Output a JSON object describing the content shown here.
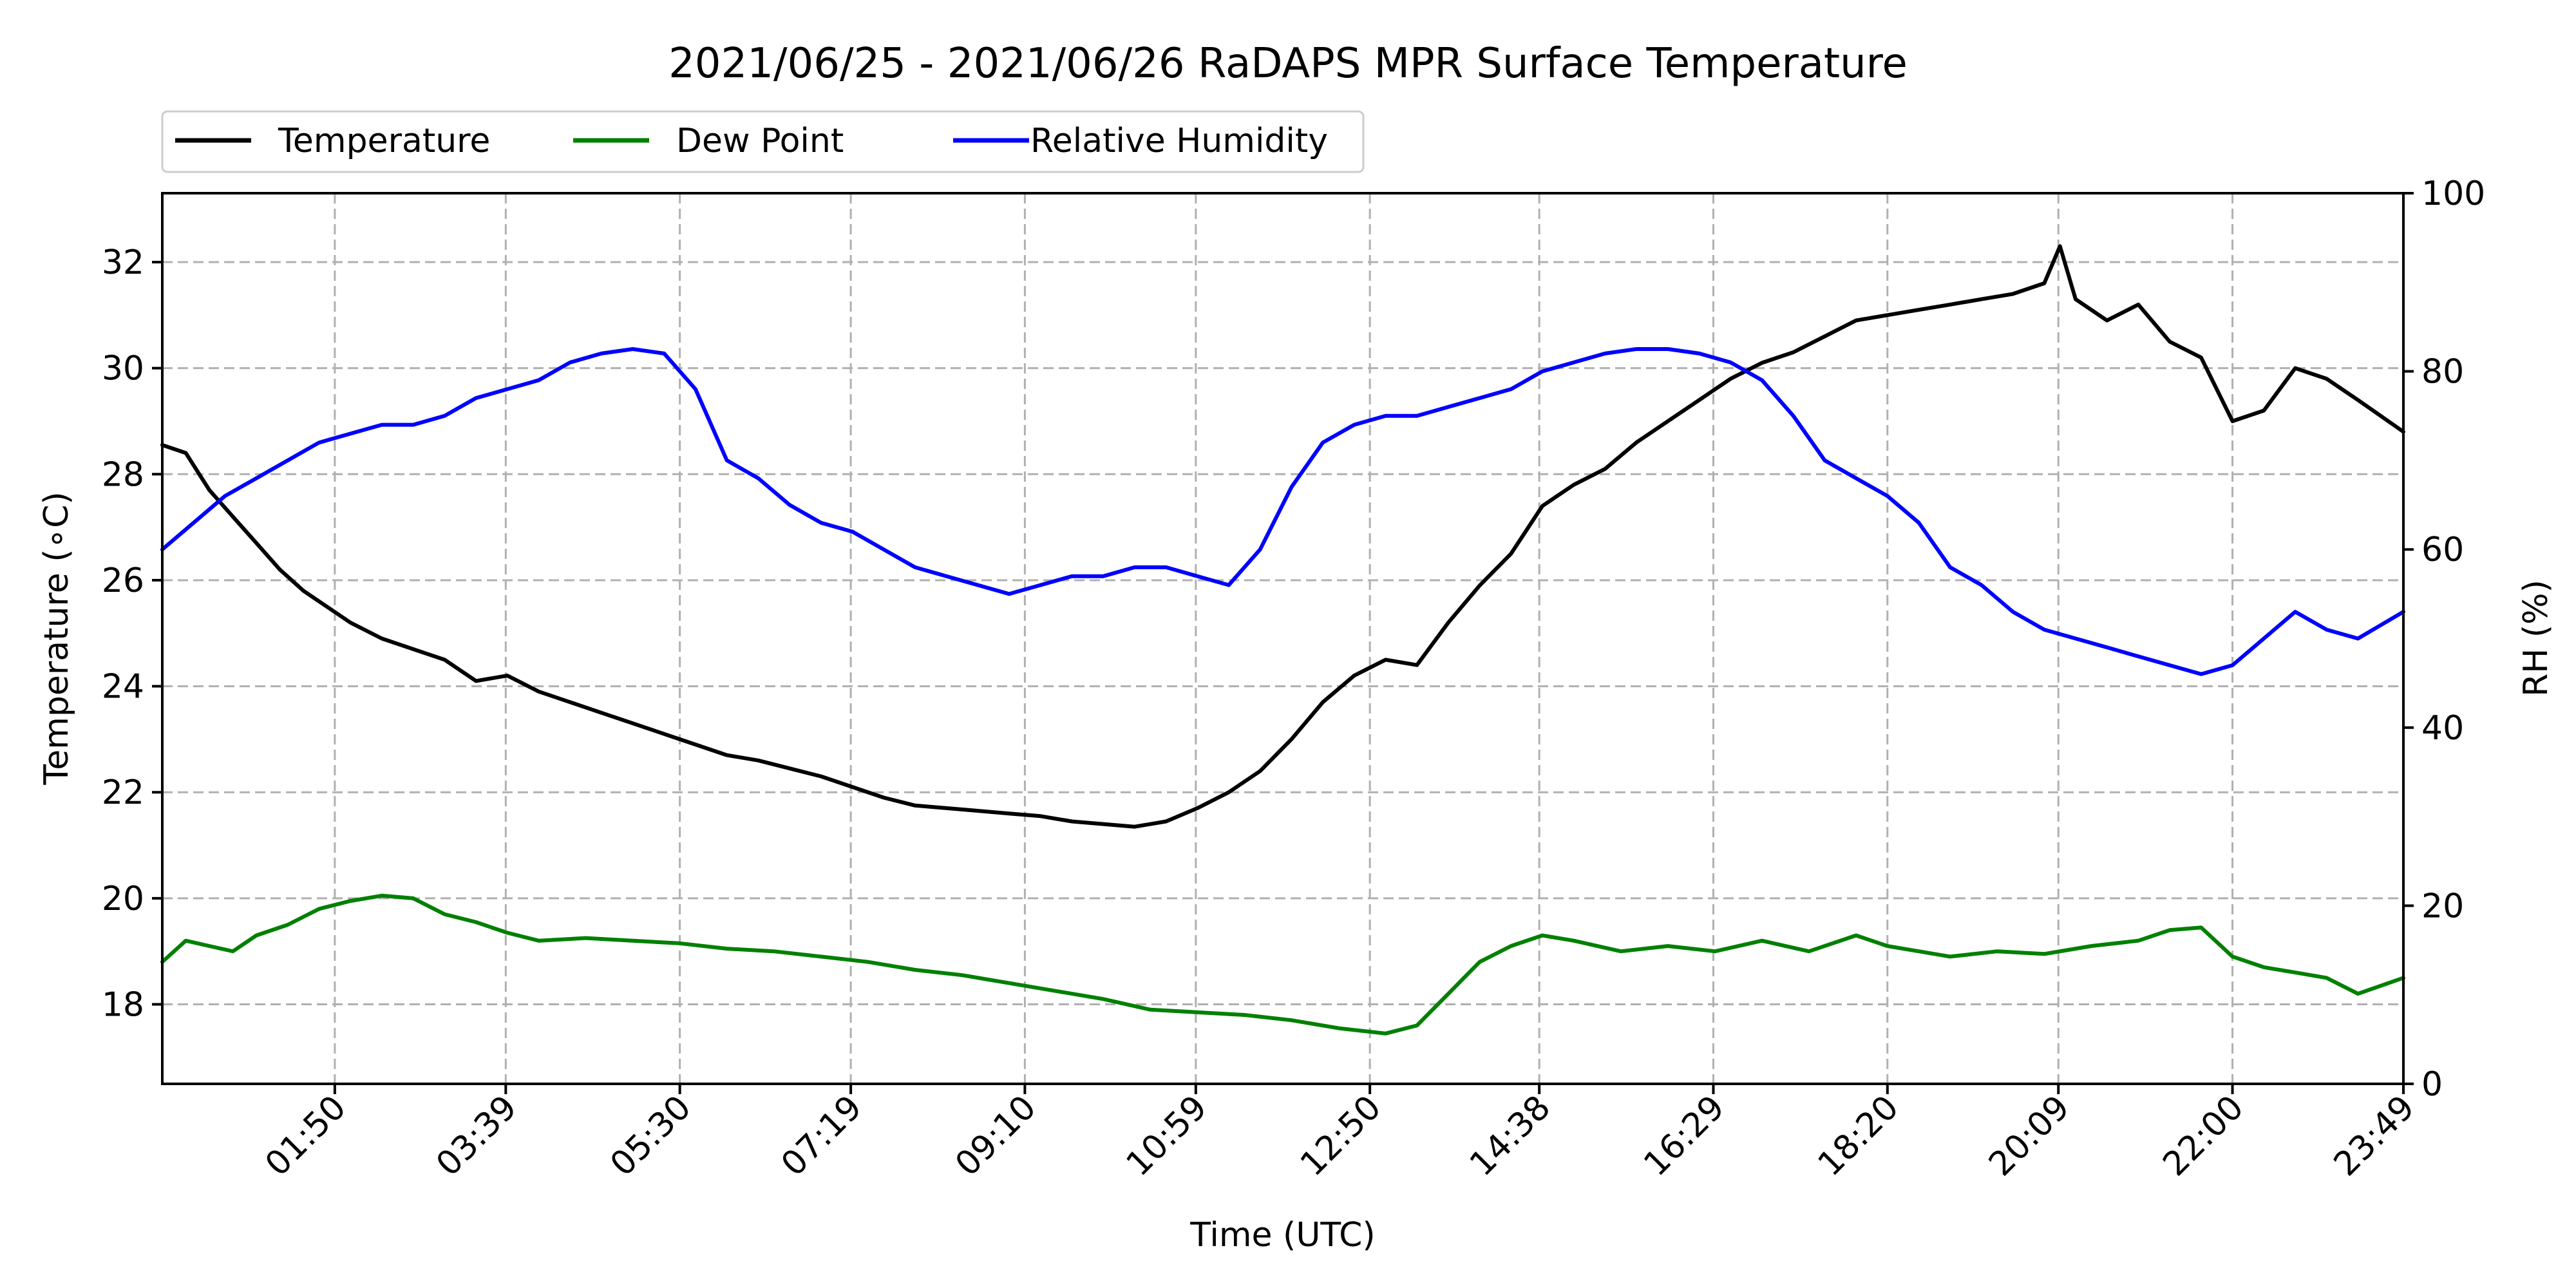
{
  "chart_data": {
    "type": "line",
    "title": "2021/06/25 - 2021/06/26 RaDAPS MPR Surface Temperature",
    "xlabel": "Time (UTC)",
    "ylabel_left": "Temperature (∘C)",
    "ylabel_right": "RH (%)",
    "x_unit": "UTC time of day",
    "x_range": [
      "00:00",
      "23:49"
    ],
    "x_ticks": [
      "01:50",
      "03:39",
      "05:30",
      "07:19",
      "09:10",
      "10:59",
      "12:50",
      "14:38",
      "16:29",
      "18:20",
      "20:09",
      "22:00",
      "23:49"
    ],
    "ylim_left": [
      16.5,
      33.3
    ],
    "yticks_left": [
      "18",
      "20",
      "22",
      "24",
      "26",
      "28",
      "30",
      "32"
    ],
    "ylim_right": [
      0,
      100
    ],
    "yticks_right": [
      "0",
      "20",
      "40",
      "60",
      "80",
      "100"
    ],
    "grid": true,
    "legend_placement": "top-left, above plot",
    "legend": [
      "Temperature",
      "Dew Point",
      "Relative Humidity"
    ],
    "colors": {
      "Temperature": "#000000",
      "Dew Point": "#008000",
      "Relative Humidity": "#0000ff"
    },
    "series": [
      {
        "name": "Temperature",
        "axis": "left",
        "x": [
          "00:00",
          "00:15",
          "00:30",
          "00:45",
          "01:00",
          "01:15",
          "01:30",
          "01:45",
          "02:00",
          "02:20",
          "02:40",
          "03:00",
          "03:20",
          "03:40",
          "04:00",
          "04:20",
          "04:40",
          "05:00",
          "05:20",
          "05:40",
          "06:00",
          "06:20",
          "06:40",
          "07:00",
          "07:20",
          "07:40",
          "08:00",
          "08:20",
          "08:40",
          "09:00",
          "09:20",
          "09:40",
          "10:00",
          "10:20",
          "10:40",
          "11:00",
          "11:20",
          "11:40",
          "12:00",
          "12:20",
          "12:40",
          "13:00",
          "13:20",
          "13:40",
          "14:00",
          "14:20",
          "14:40",
          "15:00",
          "15:20",
          "15:40",
          "16:00",
          "16:20",
          "16:40",
          "17:00",
          "17:20",
          "17:40",
          "18:00",
          "18:20",
          "18:40",
          "19:00",
          "19:20",
          "19:40",
          "20:00",
          "20:10",
          "20:20",
          "20:40",
          "21:00",
          "21:20",
          "21:40",
          "22:00",
          "22:20",
          "22:40",
          "23:00",
          "23:20",
          "23:49"
        ],
        "values": [
          28.55,
          28.4,
          27.7,
          27.2,
          26.7,
          26.2,
          25.8,
          25.5,
          25.2,
          24.9,
          24.7,
          24.5,
          24.1,
          24.2,
          23.9,
          23.7,
          23.5,
          23.3,
          23.1,
          22.9,
          22.7,
          22.6,
          22.45,
          22.3,
          22.1,
          21.9,
          21.75,
          21.7,
          21.65,
          21.6,
          21.55,
          21.45,
          21.4,
          21.35,
          21.45,
          21.7,
          22.0,
          22.4,
          23.0,
          23.7,
          24.2,
          24.5,
          24.4,
          25.2,
          25.9,
          26.5,
          27.4,
          27.8,
          28.1,
          28.6,
          29.0,
          29.4,
          29.8,
          30.1,
          30.3,
          30.6,
          30.9,
          31.0,
          31.1,
          31.2,
          31.3,
          31.4,
          31.6,
          32.3,
          31.3,
          30.9,
          31.2,
          30.5,
          30.2,
          29.0,
          29.2,
          30.0,
          29.8,
          29.4,
          28.8
        ]
      },
      {
        "name": "Dew Point",
        "axis": "left",
        "x": [
          "00:00",
          "00:15",
          "00:30",
          "00:45",
          "01:00",
          "01:20",
          "01:40",
          "02:00",
          "02:20",
          "02:40",
          "03:00",
          "03:20",
          "03:40",
          "04:00",
          "04:30",
          "05:00",
          "05:30",
          "06:00",
          "06:30",
          "07:00",
          "07:30",
          "08:00",
          "08:30",
          "09:00",
          "09:30",
          "10:00",
          "10:30",
          "11:00",
          "11:30",
          "12:00",
          "12:30",
          "13:00",
          "13:20",
          "13:40",
          "14:00",
          "14:20",
          "14:40",
          "15:00",
          "15:30",
          "16:00",
          "16:30",
          "17:00",
          "17:30",
          "18:00",
          "18:20",
          "18:40",
          "19:00",
          "19:30",
          "20:00",
          "20:30",
          "21:00",
          "21:20",
          "21:40",
          "22:00",
          "22:20",
          "22:40",
          "23:00",
          "23:20",
          "23:49"
        ],
        "values": [
          18.8,
          19.2,
          19.1,
          19.0,
          19.3,
          19.5,
          19.8,
          19.95,
          20.05,
          20.0,
          19.7,
          19.55,
          19.35,
          19.2,
          19.25,
          19.2,
          19.15,
          19.05,
          19.0,
          18.9,
          18.8,
          18.65,
          18.55,
          18.4,
          18.25,
          18.1,
          17.9,
          17.85,
          17.8,
          17.7,
          17.55,
          17.45,
          17.6,
          18.2,
          18.8,
          19.1,
          19.3,
          19.2,
          19.0,
          19.1,
          19.0,
          19.2,
          19.0,
          19.3,
          19.1,
          19.0,
          18.9,
          19.0,
          18.95,
          19.1,
          19.2,
          19.4,
          19.45,
          18.9,
          18.7,
          18.6,
          18.5,
          18.2,
          18.5
        ]
      },
      {
        "name": "Relative Humidity",
        "axis": "right",
        "x": [
          "00:00",
          "00:20",
          "00:40",
          "01:00",
          "01:20",
          "01:40",
          "02:00",
          "02:20",
          "02:40",
          "03:00",
          "03:20",
          "03:40",
          "04:00",
          "04:20",
          "04:40",
          "05:00",
          "05:20",
          "05:40",
          "06:00",
          "06:20",
          "06:40",
          "07:00",
          "07:20",
          "07:40",
          "08:00",
          "08:20",
          "08:40",
          "09:00",
          "09:20",
          "09:40",
          "10:00",
          "10:20",
          "10:40",
          "11:00",
          "11:20",
          "11:40",
          "12:00",
          "12:20",
          "12:40",
          "13:00",
          "13:20",
          "13:40",
          "14:00",
          "14:20",
          "14:40",
          "15:00",
          "15:20",
          "15:40",
          "16:00",
          "16:20",
          "16:40",
          "17:00",
          "17:20",
          "17:40",
          "18:00",
          "18:20",
          "18:40",
          "19:00",
          "19:20",
          "19:40",
          "20:00",
          "20:20",
          "20:40",
          "21:00",
          "21:20",
          "21:40",
          "22:00",
          "22:20",
          "22:40",
          "23:00",
          "23:20",
          "23:49"
        ],
        "values": [
          60,
          63,
          66,
          68,
          70,
          72,
          73,
          74,
          74,
          75,
          77,
          78,
          79,
          81,
          82,
          82.5,
          82,
          78,
          70,
          68,
          65,
          63,
          62,
          60,
          58,
          57,
          56,
          55,
          56,
          57,
          57,
          58,
          58,
          57,
          56,
          60,
          67,
          72,
          74,
          75,
          75,
          76,
          77,
          78,
          80,
          81,
          82,
          82.5,
          82.5,
          82,
          81,
          79,
          75,
          70,
          68,
          66,
          63,
          58,
          56,
          53,
          51,
          50,
          49,
          48,
          47,
          46,
          47,
          50,
          53,
          51,
          50,
          53
        ]
      }
    ]
  }
}
